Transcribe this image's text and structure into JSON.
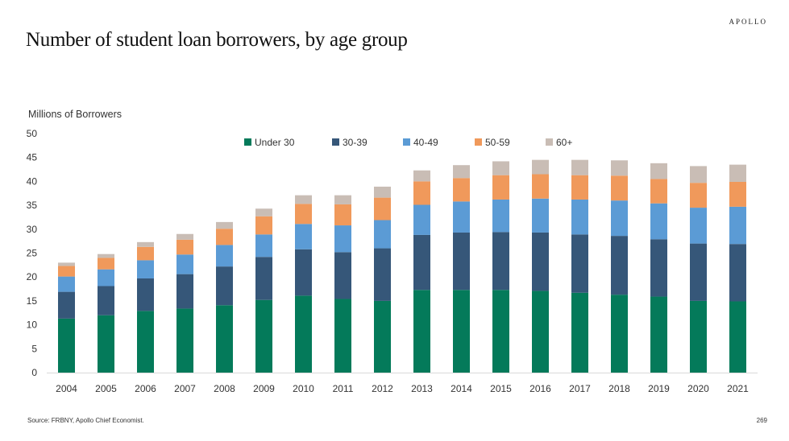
{
  "brand": "APOLLO",
  "title": "Number of student loan borrowers, by age group",
  "footer": {
    "source": "Source: FRBNY, Apollo Chief Economist.",
    "page_number": "269"
  },
  "colors": {
    "under30": "#047a5a",
    "age30_39": "#365779",
    "age40_49": "#5b9bd5",
    "age50_59": "#f0995b",
    "age60plus": "#c9bdb5"
  },
  "chart_data": {
    "type": "bar",
    "stacked": true,
    "title": "",
    "xlabel": "",
    "ylabel": "Millions of Borrowers",
    "ylim": [
      0,
      50
    ],
    "yticks": [
      0,
      5,
      10,
      15,
      20,
      25,
      30,
      35,
      40,
      45,
      50
    ],
    "grid": false,
    "legend_position": "top",
    "categories": [
      "2004",
      "2005",
      "2006",
      "2007",
      "2008",
      "2009",
      "2010",
      "2011",
      "2012",
      "2013",
      "2014",
      "2015",
      "2016",
      "2017",
      "2018",
      "2019",
      "2020",
      "2021"
    ],
    "series": [
      {
        "name": "Under 30",
        "color": "#047a5a",
        "values": [
          11.3,
          12.0,
          12.9,
          13.4,
          14.1,
          15.2,
          16.1,
          15.4,
          15.0,
          17.3,
          17.3,
          17.3,
          17.1,
          16.7,
          16.3,
          15.9,
          15.0,
          14.9
        ]
      },
      {
        "name": "30-39",
        "color": "#365779",
        "values": [
          5.6,
          6.1,
          6.8,
          7.2,
          8.1,
          9.0,
          9.7,
          9.8,
          11.0,
          11.5,
          12.0,
          12.1,
          12.2,
          12.2,
          12.3,
          12.0,
          12.0,
          12.0
        ]
      },
      {
        "name": "40-49",
        "color": "#5b9bd5",
        "values": [
          3.2,
          3.5,
          3.8,
          4.1,
          4.5,
          4.7,
          5.3,
          5.6,
          5.9,
          6.3,
          6.5,
          6.8,
          7.1,
          7.3,
          7.4,
          7.5,
          7.5,
          7.8
        ]
      },
      {
        "name": "50-59",
        "color": "#f0995b",
        "values": [
          2.2,
          2.4,
          2.8,
          3.1,
          3.4,
          3.8,
          4.2,
          4.4,
          4.7,
          4.9,
          4.9,
          5.1,
          5.1,
          5.1,
          5.2,
          5.1,
          5.2,
          5.2
        ]
      },
      {
        "name": "60+",
        "color": "#c9bdb5",
        "values": [
          0.7,
          0.8,
          1.0,
          1.2,
          1.4,
          1.6,
          1.8,
          1.9,
          2.3,
          2.3,
          2.7,
          2.9,
          3.0,
          3.2,
          3.2,
          3.3,
          3.5,
          3.6
        ]
      }
    ]
  }
}
